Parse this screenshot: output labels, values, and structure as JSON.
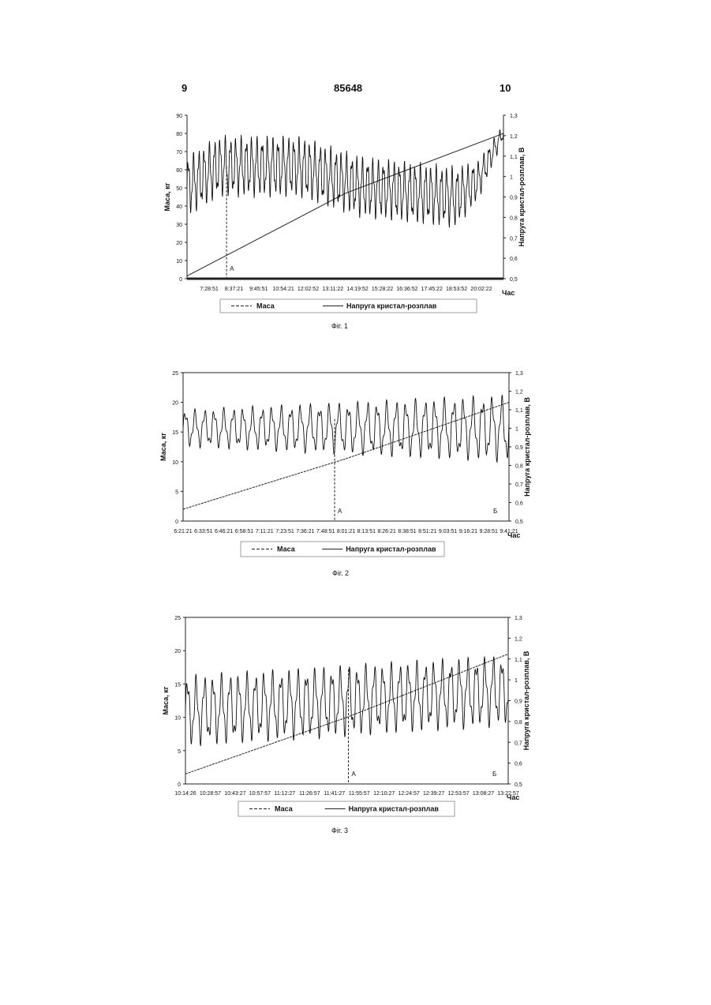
{
  "header": {
    "left": "9",
    "center": "85648",
    "right": "10"
  },
  "chart_data": [
    {
      "type": "line",
      "caption": "Фіг. 1",
      "ylabel_left": "Маса, кг",
      "ylabel_right": "Напруга кристал-розплав, В",
      "xlabel": "Час",
      "left_ticks": [
        "0",
        "10",
        "20",
        "30",
        "40",
        "50",
        "60",
        "70",
        "80",
        "90"
      ],
      "right_ticks": [
        "0,5",
        "0,6",
        "0,7",
        "0,8",
        "0,9",
        "1",
        "1,1",
        "1,2",
        "1,3"
      ],
      "ylim_left": [
        0,
        90
      ],
      "ylim_right": [
        0.5,
        1.3
      ],
      "x_ticks": [
        "7:28:51",
        "8:37:21",
        "9:45:51",
        "10:54:21",
        "12:02:52",
        "13:11:22",
        "14:19:52",
        "15:28:22",
        "16:36:52",
        "17:45:22",
        "18:53:52",
        "20:02:22"
      ],
      "legend": [
        "Маса",
        "Напруга кристал-розплав"
      ],
      "marker": {
        "label": "A",
        "x_frac": 0.125
      },
      "marker_b": "",
      "mass_line": {
        "points": [
          [
            0.0,
            1.5
          ],
          [
            0.5,
            47
          ],
          [
            1.0,
            80
          ]
        ]
      },
      "voltage_profile": {
        "anchors": [
          [
            0.0,
            0.95
          ],
          [
            0.1,
            1.05
          ],
          [
            0.35,
            1.05
          ],
          [
            0.55,
            0.95
          ],
          [
            0.85,
            0.9
          ],
          [
            0.92,
            0.98
          ],
          [
            1.0,
            1.22
          ]
        ],
        "cycles": 60,
        "amplitude": 0.15
      }
    },
    {
      "type": "line",
      "caption": "Фіг. 2",
      "ylabel_left": "Маса, кг",
      "ylabel_right": "Напруга кристал-розплав, В",
      "xlabel": "Час",
      "left_ticks": [
        "0",
        "5",
        "10",
        "15",
        "20",
        "25"
      ],
      "right_ticks": [
        "0,5",
        "0,6",
        "0,7",
        "0,8",
        "0,9",
        "1",
        "1,1",
        "1,2",
        "1,3"
      ],
      "ylim_left": [
        0,
        25
      ],
      "ylim_right": [
        0.5,
        1.3
      ],
      "x_ticks": [
        "6:21:21",
        "6:33:51",
        "6:46:21",
        "6:58:51",
        "7:11:21",
        "7:23:51",
        "7:36:21",
        "7:48:51",
        "8:01:21",
        "8:13:51",
        "8:26:21",
        "8:38:51",
        "8:51:21",
        "9:03:51",
        "9:16:21",
        "9:28:51",
        "9:41:21"
      ],
      "legend": [
        "Маса",
        "Напруга кристал-розплав"
      ],
      "marker": {
        "label": "A",
        "x_frac": 0.465
      },
      "marker_b": "Б",
      "mass_line": {
        "points": [
          [
            0.0,
            2
          ],
          [
            0.5,
            10.5
          ],
          [
            1.0,
            20
          ]
        ]
      },
      "voltage_profile": {
        "anchors": [
          [
            0.0,
            1.0
          ],
          [
            0.45,
            1.0
          ],
          [
            1.0,
            1.0
          ]
        ],
        "cycles": 34,
        "amplitude": 0.1,
        "grow": 0.08
      }
    },
    {
      "type": "line",
      "caption": "Фіг. 3",
      "ylabel_left": "Маса, кг",
      "ylabel_right": "Напруга кристал-розплав, В",
      "xlabel": "Час",
      "left_ticks": [
        "0",
        "5",
        "10",
        "15",
        "20",
        "25"
      ],
      "right_ticks": [
        "0,5",
        "0,6",
        "0,7",
        "0,8",
        "0,9",
        "1",
        "1,1",
        "1,2",
        "1,3"
      ],
      "ylim_left": [
        0,
        25
      ],
      "ylim_right": [
        0.5,
        1.3
      ],
      "x_ticks": [
        "10:14:26",
        "10:28:57",
        "10:43:27",
        "10:57:57",
        "11:12:27",
        "11:26:57",
        "11:41:27",
        "11:55:57",
        "12:10:27",
        "12:24:57",
        "12:39:27",
        "12:53:57",
        "13:08:27",
        "13:22:57"
      ],
      "legend": [
        "Маса",
        "Напруга кристал-розплав"
      ],
      "marker": {
        "label": "A",
        "x_frac": 0.505
      },
      "marker_b": "Б",
      "mass_line": {
        "points": [
          [
            0.0,
            1.5
          ],
          [
            0.5,
            10
          ],
          [
            1.0,
            19.5
          ]
        ]
      },
      "voltage_profile": {
        "anchors": [
          [
            0.0,
            0.85
          ],
          [
            0.5,
            0.9
          ],
          [
            1.0,
            0.95
          ]
        ],
        "cycles": 38,
        "amplitude": 0.17
      }
    }
  ]
}
